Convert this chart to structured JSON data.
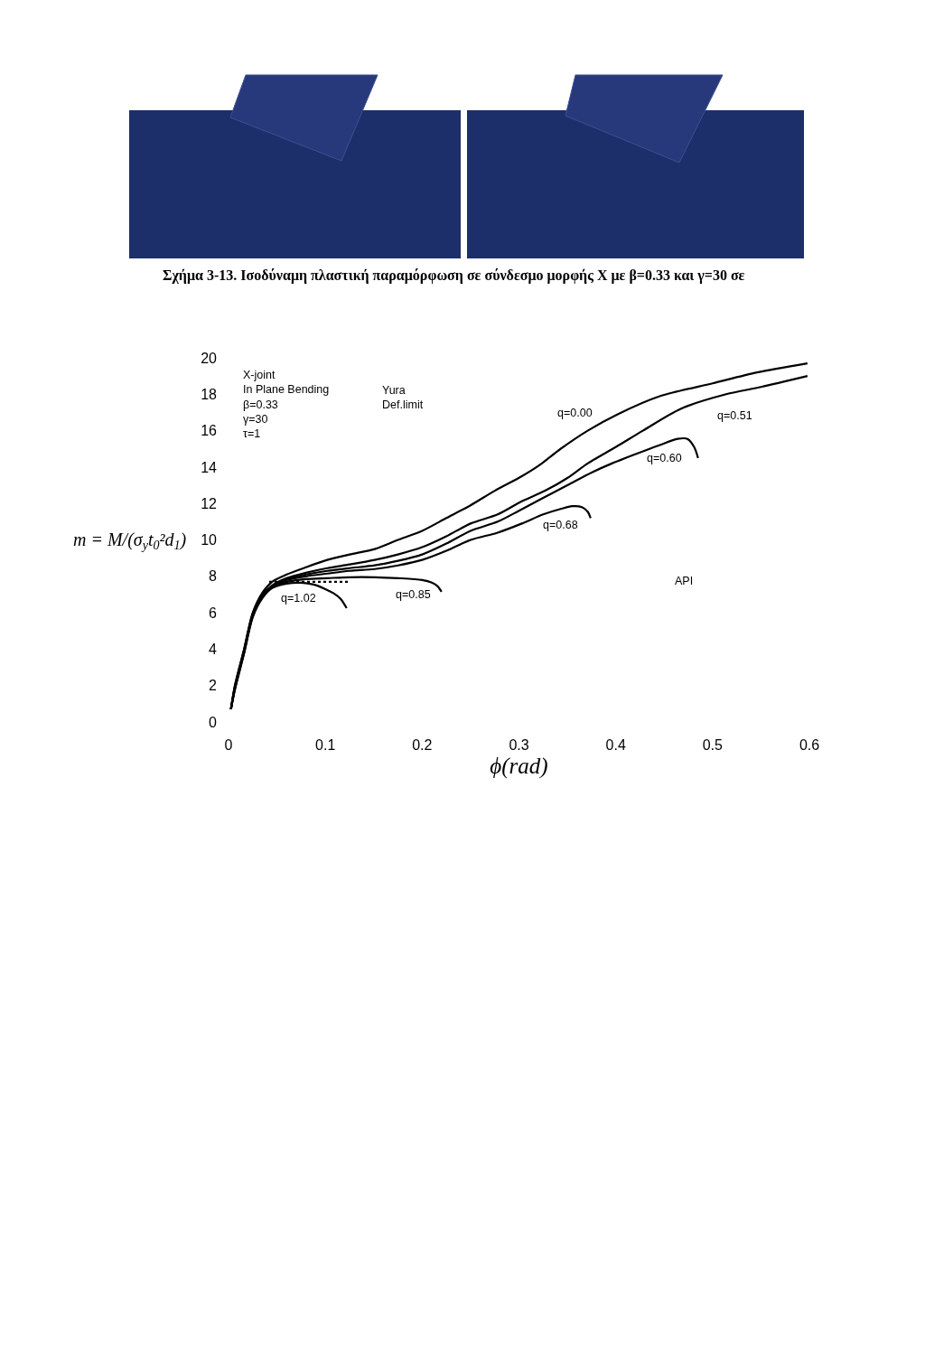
{
  "chart_data": {
    "type": "line",
    "line_style": "solid",
    "xlabel": "ϕ(rad)",
    "ylabel": "m = M/(σ$_{y}$t$_{0}$²d$_{1}$)",
    "xlim": [
      0,
      0.6
    ],
    "xticks": [
      0,
      0.1,
      0.2,
      0.3,
      0.4,
      0.5,
      0.6
    ],
    "ylim": [
      0,
      20
    ],
    "yticks": [
      0,
      2,
      4,
      6,
      8,
      10,
      12,
      14,
      16,
      18,
      20
    ],
    "series": [
      {
        "color": "#000000",
        "x": [
          0.0025,
          0.0065,
          0.016,
          0.025,
          0.035,
          0.045,
          0.06,
          0.08,
          0.102,
          0.125,
          0.151,
          0.175,
          0.2,
          0.225,
          0.25,
          0.275,
          0.303,
          0.321,
          0.343,
          0.371,
          0.402,
          0.446,
          0.5,
          0.546,
          0.598
        ],
        "values": [
          0.7,
          2.0,
          4.0,
          6.0,
          7.1,
          7.7,
          8.1,
          8.5,
          8.9,
          9.2,
          9.5,
          10.0,
          10.5,
          11.2,
          11.9,
          12.7,
          13.5,
          14.1,
          15.0,
          16.0,
          16.9,
          17.9,
          18.6,
          19.2,
          19.7
        ]
      },
      {
        "color": "#000000",
        "x": [
          0.0025,
          0.0065,
          0.016,
          0.025,
          0.035,
          0.045,
          0.06,
          0.08,
          0.102,
          0.125,
          0.151,
          0.175,
          0.2,
          0.225,
          0.25,
          0.278,
          0.302,
          0.327,
          0.35,
          0.371,
          0.4,
          0.428,
          0.467,
          0.514,
          0.55,
          0.598
        ],
        "values": [
          0.7,
          1.95,
          3.95,
          5.95,
          7.0,
          7.5,
          7.9,
          8.2,
          8.45,
          8.65,
          8.9,
          9.2,
          9.6,
          10.2,
          10.9,
          11.4,
          12.1,
          12.7,
          13.4,
          14.2,
          15.1,
          16.0,
          17.2,
          18.0,
          18.4,
          19.0
        ]
      },
      {
        "color": "#000000",
        "x": [
          0.0025,
          0.0065,
          0.016,
          0.025,
          0.035,
          0.045,
          0.06,
          0.08,
          0.102,
          0.125,
          0.151,
          0.175,
          0.2,
          0.225,
          0.25,
          0.278,
          0.3,
          0.321,
          0.35,
          0.375,
          0.396,
          0.42,
          0.445,
          0.464,
          0.474,
          0.481,
          0.485
        ],
        "values": [
          0.7,
          1.9,
          3.9,
          5.9,
          6.95,
          7.45,
          7.85,
          8.1,
          8.3,
          8.45,
          8.6,
          8.85,
          9.2,
          9.8,
          10.5,
          11.0,
          11.6,
          12.2,
          13.0,
          13.7,
          14.2,
          14.7,
          15.2,
          15.55,
          15.55,
          15.1,
          14.5
        ]
      },
      {
        "color": "#000000",
        "x": [
          0.0025,
          0.0065,
          0.016,
          0.025,
          0.035,
          0.045,
          0.06,
          0.08,
          0.102,
          0.125,
          0.151,
          0.175,
          0.2,
          0.225,
          0.25,
          0.278,
          0.303,
          0.325,
          0.343,
          0.355,
          0.365,
          0.371,
          0.374
        ],
        "values": [
          0.7,
          1.85,
          3.85,
          5.85,
          6.9,
          7.4,
          7.8,
          8.0,
          8.15,
          8.3,
          8.4,
          8.6,
          8.9,
          9.4,
          10.0,
          10.4,
          10.9,
          11.4,
          11.7,
          11.85,
          11.8,
          11.55,
          11.2
        ]
      },
      {
        "color": "#000000",
        "x": [
          0.0025,
          0.0065,
          0.016,
          0.025,
          0.035,
          0.045,
          0.06,
          0.08,
          0.102,
          0.125,
          0.151,
          0.175,
          0.2,
          0.21,
          0.216,
          0.22
        ],
        "values": [
          0.7,
          1.8,
          3.8,
          5.8,
          6.85,
          7.4,
          7.7,
          7.85,
          7.9,
          7.95,
          7.95,
          7.9,
          7.8,
          7.65,
          7.45,
          7.15
        ]
      },
      {
        "color": "#000000",
        "x": [
          0.0025,
          0.0065,
          0.016,
          0.025,
          0.035,
          0.045,
          0.06,
          0.075,
          0.088,
          0.1,
          0.109,
          0.116,
          0.122
        ],
        "values": [
          0.7,
          1.75,
          3.75,
          5.75,
          6.8,
          7.35,
          7.6,
          7.65,
          7.55,
          7.3,
          7.05,
          6.75,
          6.25
        ]
      },
      {
        "color": "#000000",
        "line_style": "dotted",
        "x": [
          0.042,
          0.125
        ],
        "values": [
          7.7,
          7.7
        ]
      }
    ],
    "annotations": [
      "Σχήμα 3-13. Ισοδύναμη πλαστική παραμόρφωση σε σύνδεσμο μορφής X με β=0.33 και γ=30 σε",
      "X-joint\nIn Plane Bending\nβ=0.33\nγ=30\nτ=1",
      "Yura",
      "Def.limit",
      "q=0.00",
      "q=0.51",
      "q=0.60",
      "q=0.68",
      "q=0.85",
      "q=1.02",
      "API"
    ]
  }
}
